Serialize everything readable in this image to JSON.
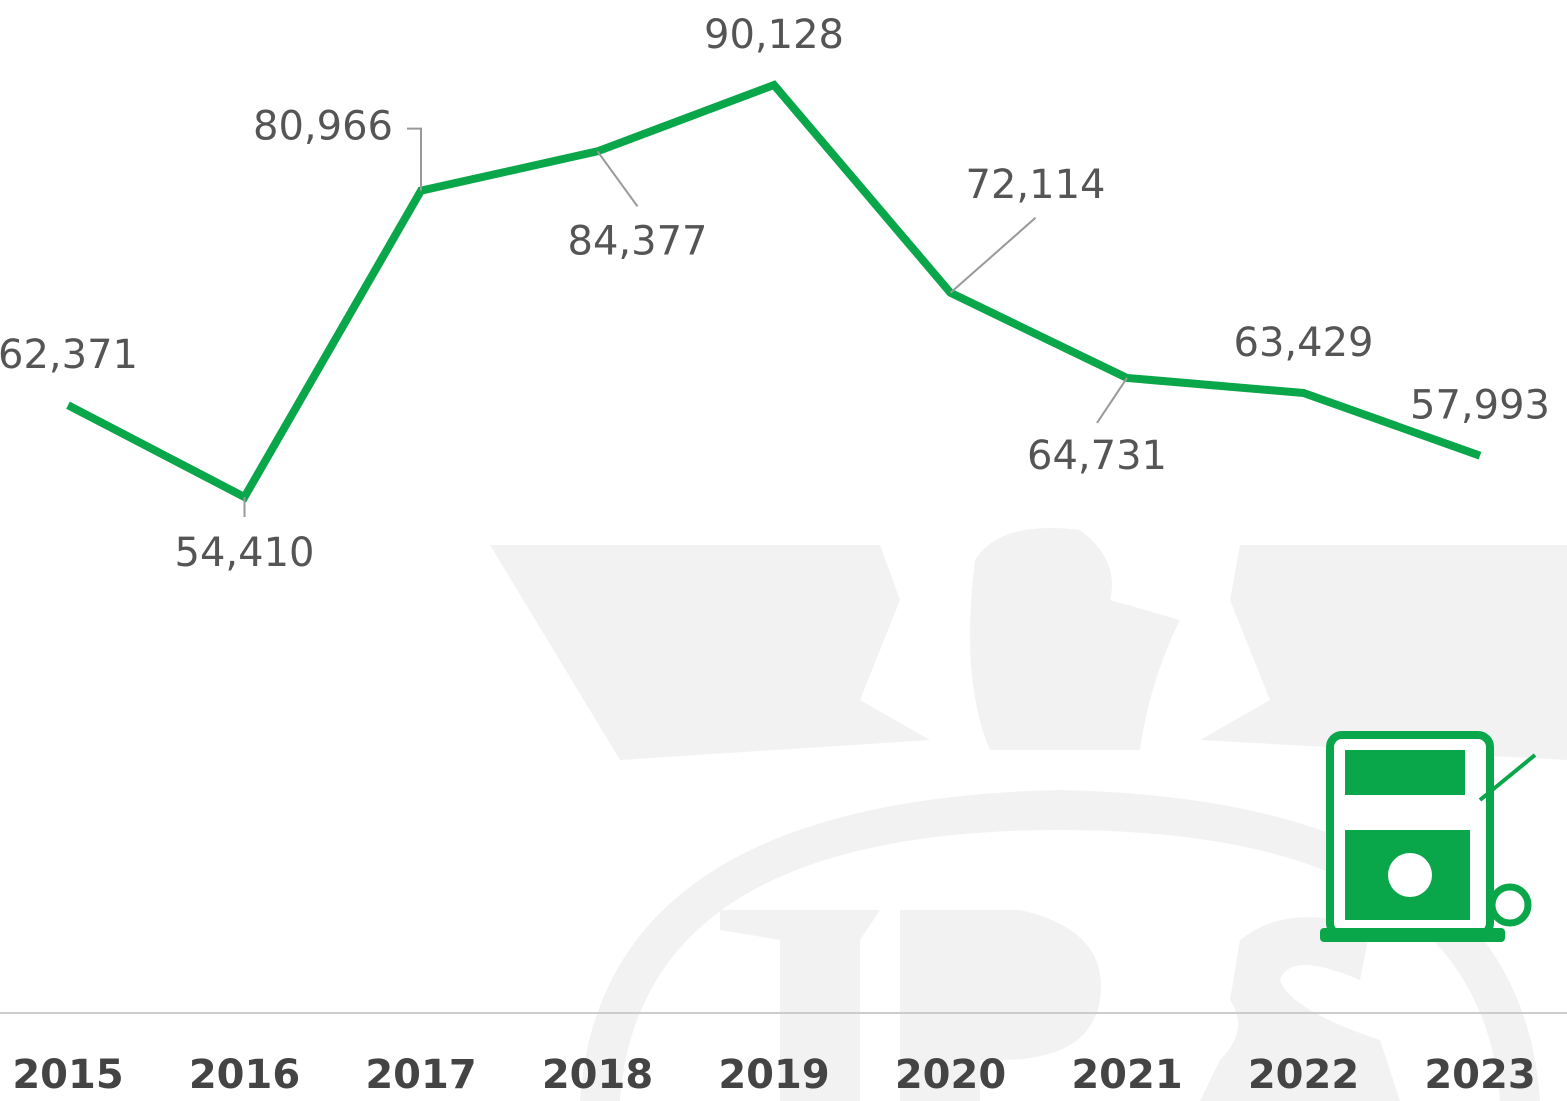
{
  "chart_data": {
    "type": "line",
    "categories": [
      "2015",
      "2016",
      "2017",
      "2018",
      "2019",
      "2020",
      "2021",
      "2022",
      "2023"
    ],
    "values": [
      62371,
      54410,
      80966,
      84377,
      90128,
      72114,
      64731,
      63429,
      57993
    ],
    "value_labels": [
      "62,371",
      "54,410",
      "80,966",
      "84,377",
      "90,128",
      "72,114",
      "64,731",
      "63,429",
      "57,993"
    ],
    "color": "#0aa64a"
  }
}
